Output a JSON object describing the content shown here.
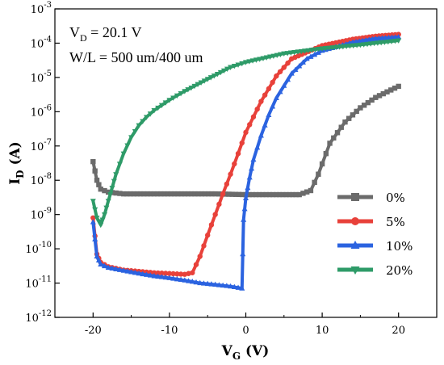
{
  "chart_data": {
    "type": "line",
    "xlabel": "V",
    "xlabel_sub": "G",
    "xlabel_unit": "(V)",
    "ylabel": "I",
    "ylabel_sub": "D",
    "ylabel_unit": "(A)",
    "xlim": [
      -25,
      25
    ],
    "ylim_log10": [
      -12,
      -3
    ],
    "y_scale": "log",
    "x_ticks": [
      -20,
      -10,
      0,
      10,
      20
    ],
    "x_tick_labels": [
      "-20",
      "-10",
      "0",
      "10",
      "20"
    ],
    "y_ticks_exp": [
      -12,
      -11,
      -10,
      -9,
      -8,
      -7,
      -6,
      -5,
      -4,
      -3
    ],
    "y_tick_labels": [
      "-12",
      "-11",
      "-10",
      "-9",
      "-8",
      "-7",
      "-6",
      "-5",
      "-4",
      "-3"
    ],
    "y_tick_base": "10",
    "annotation_line1": {
      "main": "V",
      "sub": "D",
      "rest": " = 20.1 V"
    },
    "annotation_line2": "W/L = 500 um/400 um",
    "legend_position": "bottom-right",
    "series": [
      {
        "name": "0%",
        "color": "#6b6b6b",
        "marker": "square",
        "x": [
          -20,
          -19.5,
          -19,
          -18,
          -16,
          -12,
          -8,
          -4,
          0,
          4,
          7,
          8.5,
          9.5,
          11,
          13,
          15,
          17,
          19,
          20
        ],
        "y": [
          3.5e-08,
          1e-08,
          5.5e-09,
          4.5e-09,
          4e-09,
          4e-09,
          4e-09,
          4e-09,
          3.8e-09,
          3.8e-09,
          3.8e-09,
          5e-09,
          1.5e-08,
          1.2e-07,
          5e-07,
          1.3e-06,
          2.6e-06,
          4.3e-06,
          5.5e-06
        ]
      },
      {
        "name": "5%",
        "color": "#e8413a",
        "marker": "circle",
        "x": [
          -20,
          -19.5,
          -19,
          -18,
          -16,
          -14,
          -12,
          -10,
          -8,
          -7,
          -6,
          -5,
          -4,
          -3,
          -2,
          -1,
          0,
          2,
          4,
          6,
          10,
          14,
          17,
          20
        ],
        "y": [
          8e-10,
          7e-11,
          4e-11,
          3e-11,
          2.4e-11,
          2.2e-11,
          2e-11,
          1.9e-11,
          1.8e-11,
          2e-11,
          6e-11,
          2.5e-10,
          1e-09,
          4e-09,
          1.5e-08,
          6e-08,
          2.5e-07,
          2e-06,
          1.1e-05,
          3.5e-05,
          8.5e-05,
          0.00013,
          0.00016,
          0.00018
        ]
      },
      {
        "name": "10%",
        "color": "#2b63e0",
        "marker": "triangle-up",
        "x": [
          -20,
          -19.5,
          -19,
          -18,
          -16,
          -14,
          -12,
          -10,
          -8,
          -6,
          -4,
          -2,
          -0.5,
          -0.3,
          0,
          0.5,
          1,
          2,
          3,
          4,
          6,
          8,
          10,
          14,
          17,
          20
        ],
        "y": [
          6e-10,
          6e-11,
          3.5e-11,
          2.8e-11,
          2.3e-11,
          1.9e-11,
          1.6e-11,
          1.4e-11,
          1.2e-11,
          1e-11,
          9e-12,
          8e-12,
          7e-12,
          7e-10,
          3e-09,
          1.2e-08,
          4e-08,
          2e-07,
          8e-07,
          2.5e-06,
          1.3e-05,
          3.5e-05,
          6e-05,
          0.000105,
          0.000135,
          0.00015
        ]
      },
      {
        "name": "20%",
        "color": "#2e9b68",
        "marker": "triangle-down",
        "x": [
          -20,
          -19.5,
          -19,
          -18.5,
          -18,
          -17.5,
          -17,
          -16,
          -15,
          -14,
          -13,
          -12,
          -10,
          -8,
          -5,
          -2,
          0,
          5,
          10,
          15,
          20
        ],
        "y": [
          2.5e-09,
          8e-10,
          5e-10,
          1e-09,
          2.5e-09,
          6e-09,
          1.5e-08,
          6e-08,
          1.8e-07,
          4e-07,
          7e-07,
          1.1e-06,
          2.2e-06,
          4e-06,
          9e-06,
          2e-05,
          2.8e-05,
          5e-05,
          7e-05,
          9e-05,
          0.00012
        ]
      }
    ]
  }
}
